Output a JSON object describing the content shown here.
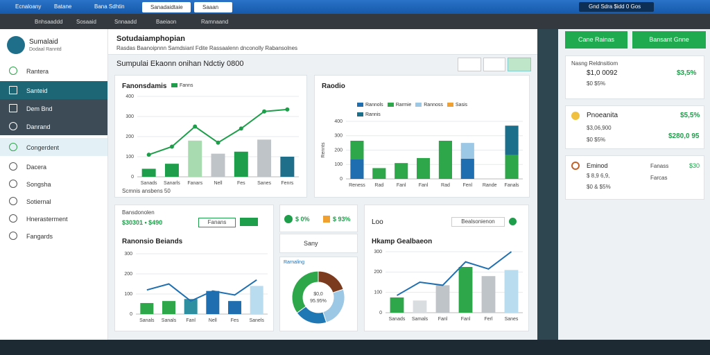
{
  "browser": {
    "tabs": [
      "Ecnaloany",
      "Batane",
      "Bana Sdhtin"
    ],
    "page_tabs": [
      "Sanadaidtaie",
      "Saaan"
    ],
    "account": "Gnd Sdra $idd 0 Gos"
  },
  "toolbar": {
    "items": [
      "Bnhsaaddd",
      "Sosaaid",
      "Snnaadd",
      "Baeiaon",
      "Ramnaand"
    ]
  },
  "sidebar": {
    "brand": "Sumalaid",
    "brand_sub": "Dodaal Ranntd",
    "items": [
      "Rantera",
      "Santeid",
      "Dem Bnd",
      "Danrand",
      "Congerdent",
      "Dacera",
      "Songsha",
      "Sotiernal",
      "Hnerasterment",
      "Fangards"
    ]
  },
  "header": {
    "title": "Sotudaiamphopian",
    "subtitle": "Rasdas Baanoipnnn  Samdsianl Fdite  Rassaalenn dnconolly  Rabansolnes"
  },
  "section_title": "Sumpulai Ekaonn onihan Ndctiy 0800",
  "stats": [
    "$ 0%",
    "$ 93%"
  ],
  "sany": "Sany",
  "chart_data": [
    {
      "type": "bar",
      "title": "Fanonsdamis",
      "note": "Scmnis ansbens 50",
      "categories": [
        "Sanads",
        "Sanarls",
        "Fanars",
        "Nell",
        "Fes",
        "Sanes",
        "Fenrs"
      ],
      "ylim": [
        0,
        400
      ],
      "yticks": [
        0,
        100,
        200,
        300,
        400
      ],
      "grid": true,
      "markers": true,
      "series": [
        {
          "name": "Fanns",
          "type": "bar",
          "color": "#1e9e4a",
          "colors": [
            "#1e9e4a",
            "#1e9e4a",
            "#a8dcb0",
            "#bfc4c8",
            "#1e9e4a",
            "#bfc4c8",
            "#1f6f8b"
          ],
          "values": [
            40,
            65,
            180,
            115,
            125,
            185,
            100
          ]
        },
        {
          "type": "line",
          "color": "#1e9e4a",
          "values": [
            110,
            150,
            250,
            170,
            240,
            325,
            335
          ]
        }
      ]
    },
    {
      "type": "bar",
      "stacked": true,
      "title": "Raodio",
      "y_label": "Rennts",
      "categories": [
        "Reness",
        "Rad",
        "Fanl",
        "Fanl",
        "Rad",
        "Fenl",
        "Rande",
        "Fanals"
      ],
      "ylim": [
        0,
        400
      ],
      "yticks": [
        0,
        100,
        200,
        300,
        400
      ],
      "grid": true,
      "series": [
        {
          "name": "Rannols",
          "type": "bar",
          "color": "#1f6fb0",
          "values": [
            135,
            0,
            0,
            0,
            0,
            140,
            0,
            0
          ]
        },
        {
          "name": "Rarmie",
          "type": "bar",
          "color": "#2ea64a",
          "values": [
            130,
            75,
            110,
            145,
            265,
            0,
            0,
            165
          ]
        },
        {
          "name": "Rannoss",
          "type": "bar",
          "color": "#9cc8e6",
          "values": [
            0,
            0,
            0,
            0,
            0,
            110,
            0,
            0
          ]
        },
        {
          "name": "Sasis",
          "type": "bar",
          "color": "#f0a030",
          "values": [
            0,
            0,
            0,
            0,
            0,
            0,
            0,
            0
          ]
        },
        {
          "name": "Rannis",
          "type": "bar",
          "color": "#1b6f8a",
          "values": [
            0,
            0,
            0,
            0,
            0,
            0,
            0,
            205
          ]
        }
      ]
    },
    {
      "type": "bar",
      "header": "Bansdonolen",
      "stat": "$30301 • $490",
      "filter": "Fanans",
      "title": "Ranonsio Beiands",
      "categories": [
        "Sanals",
        "Sanals",
        "Fanl",
        "Nell",
        "Fes",
        "Sanels"
      ],
      "ylim": [
        0,
        300
      ],
      "yticks": [
        0,
        100,
        200,
        300
      ],
      "grid": true,
      "series": [
        {
          "type": "bar",
          "colors": [
            "#2ea64a",
            "#2ea64a",
            "#2e8fa0",
            "#1f6fb0",
            "#1f6fb0",
            "#b9dcef"
          ],
          "values": [
            55,
            65,
            75,
            115,
            65,
            140
          ]
        },
        {
          "type": "line",
          "color": "#1f6fb0",
          "values": [
            120,
            150,
            65,
            115,
            95,
            170
          ]
        }
      ]
    },
    {
      "type": "pie",
      "label": "Rarnaling",
      "center": [
        "$0,0",
        "95.95%"
      ],
      "values": [
        20,
        25,
        20,
        35
      ],
      "colors": [
        "#7a3b1f",
        "#9cc8e6",
        "#1f77b4",
        "#2ea64a"
      ]
    },
    {
      "type": "bar",
      "header": "Loo",
      "dropdown": "Bealsonienon",
      "title": "Hkamp Gealbaeon",
      "categories": [
        "Sanads",
        "Samals",
        "Fanl",
        "Fanl",
        "Ferl",
        "Sanes"
      ],
      "ylim": [
        0,
        300
      ],
      "yticks": [
        0,
        100,
        200,
        300
      ],
      "grid": true,
      "series": [
        {
          "type": "bar",
          "colors": [
            "#2ea64a",
            "#d9dde0",
            "#bfc4c8",
            "#2ea64a",
            "#bfc4c8",
            "#b9dcef"
          ],
          "values": [
            75,
            60,
            135,
            225,
            180,
            210
          ]
        },
        {
          "type": "line",
          "color": "#1f6fb0",
          "values": [
            85,
            150,
            135,
            250,
            215,
            300
          ]
        }
      ]
    }
  ],
  "right_panel": {
    "buttons": [
      "Cane Rainas",
      "Bansant Gnne"
    ],
    "cards": [
      {
        "title": "Nasng Reldnsitiom",
        "value": "$1,0 0092",
        "sub": "$0 $5%",
        "change": "$3,5%"
      },
      {
        "title": "Pnoeanita",
        "value": "$3,06,900",
        "sub": "$0 $5%",
        "change": "$5,5%",
        "total": "$280,0 95"
      },
      {
        "title": "Eminod",
        "value": "$ 8,9 6,9,",
        "sub": "$0 & $5%",
        "legend": [
          "Fanass",
          "Farcas"
        ],
        "change": "$30"
      }
    ]
  }
}
